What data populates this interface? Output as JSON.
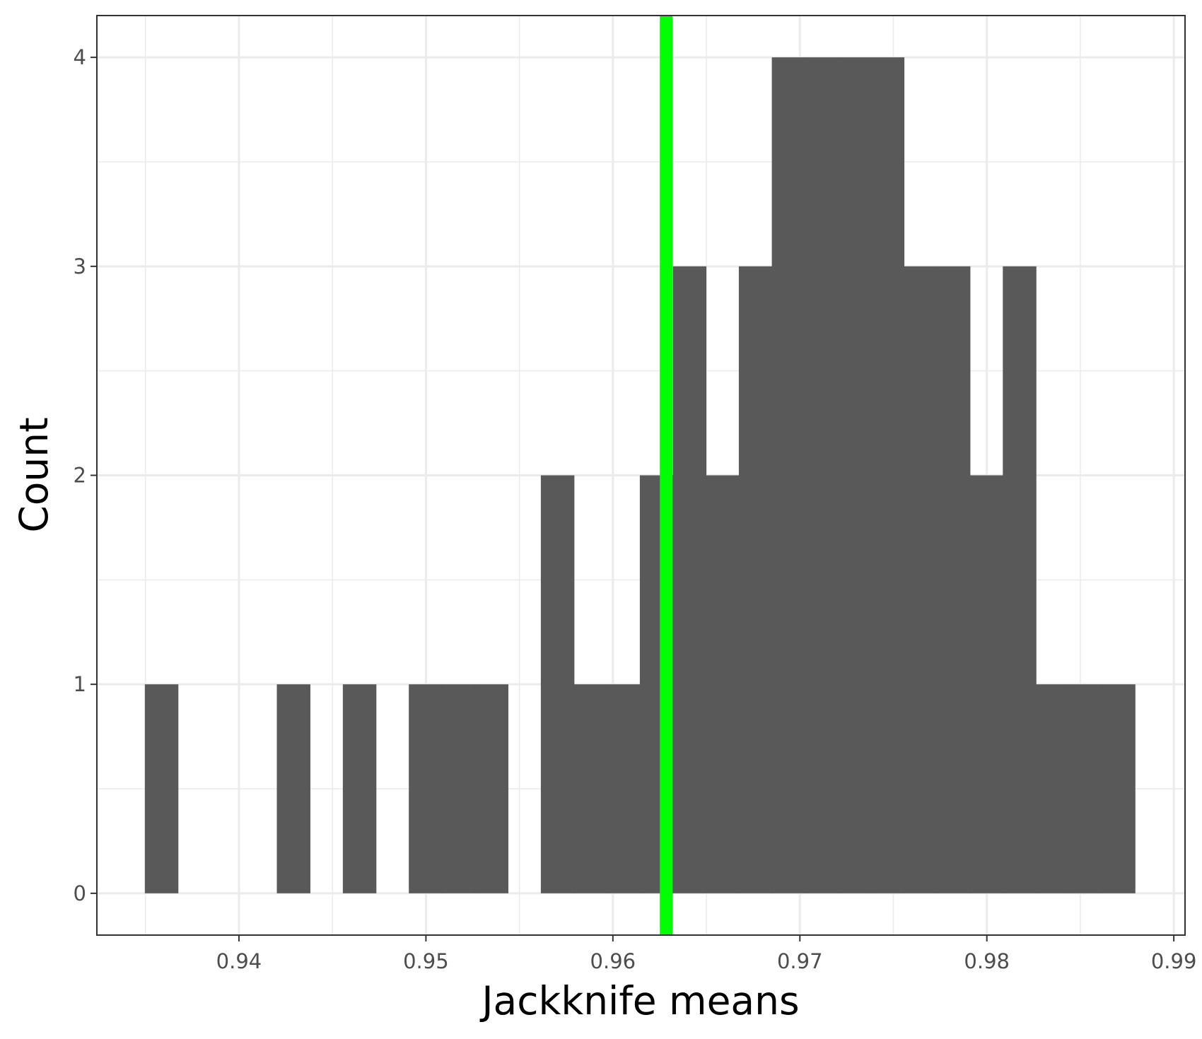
{
  "chart_data": {
    "type": "bar",
    "subtype": "histogram",
    "xlabel": "Jackknife means",
    "ylabel": "Count",
    "xlim": [
      0.9324,
      0.9906
    ],
    "ylim": [
      -0.2,
      4.2
    ],
    "x_ticks": [
      0.94,
      0.95,
      0.96,
      0.97,
      0.98,
      0.99
    ],
    "x_tick_labels": [
      "0.94",
      "0.95",
      "0.96",
      "0.97",
      "0.98",
      "0.99"
    ],
    "y_ticks": [
      0,
      1,
      2,
      3,
      4
    ],
    "y_tick_labels": [
      "0",
      "1",
      "2",
      "3",
      "4"
    ],
    "grid": true,
    "bin_start": 0.93498,
    "bin_width": 0.001765,
    "counts": [
      1,
      0,
      0,
      0,
      1,
      0,
      1,
      0,
      1,
      1,
      1,
      0,
      2,
      1,
      1,
      2,
      3,
      2,
      3,
      4,
      4,
      4,
      4,
      3,
      3,
      2,
      3,
      1,
      1,
      1
    ],
    "bar_color": "#595959",
    "vline": {
      "x": 0.96285,
      "color": "#00ff00"
    }
  }
}
